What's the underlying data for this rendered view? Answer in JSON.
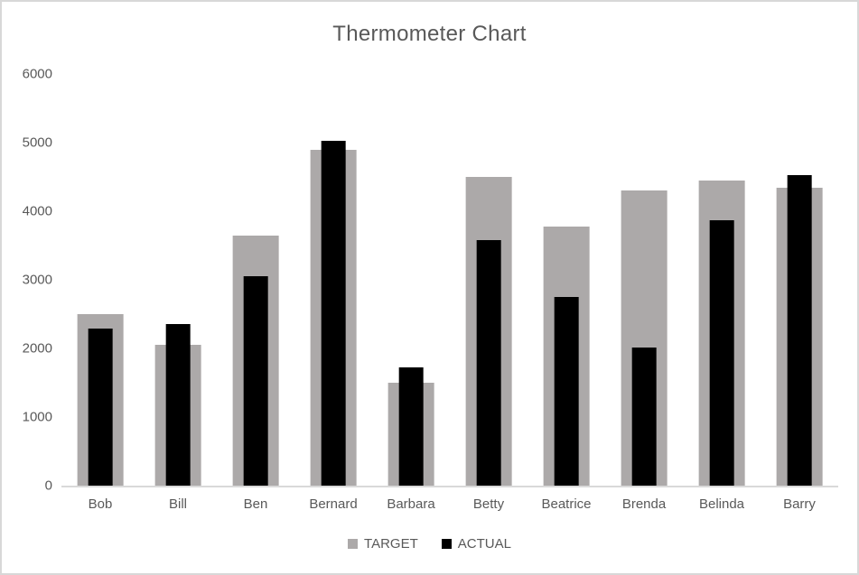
{
  "window": {
    "background": "#FFFFFF",
    "border_color": "#D8D8D8",
    "text_color": "#595959",
    "axis_line_color": "#D9D9D9"
  },
  "chart_data": {
    "type": "bar",
    "title": "Thermometer Chart",
    "categories": [
      "Bob",
      "Bill",
      "Ben",
      "Bernard",
      "Barbara",
      "Betty",
      "Beatrice",
      "Brenda",
      "Belinda",
      "Barry"
    ],
    "series": [
      {
        "name": "TARGET",
        "color": "#ACA9A9",
        "values": [
          2500,
          2050,
          3640,
          4900,
          1500,
          4500,
          3770,
          4300,
          4450,
          4340
        ]
      },
      {
        "name": "ACTUAL",
        "color": "#000000",
        "values": [
          2290,
          2350,
          3050,
          5020,
          1730,
          3580,
          2750,
          2010,
          3870,
          4520
        ]
      }
    ],
    "xlabel": "",
    "ylabel": "",
    "ylim": [
      0,
      6000
    ],
    "ytick_step": 1000,
    "ytick_labels": [
      "0",
      "1000",
      "2000",
      "3000",
      "4000",
      "5000",
      "6000"
    ],
    "grid": false,
    "legend_position": "bottom",
    "style_note": "thermometer chart: narrow black ACTUAL bar overlaid on wide gray TARGET bar"
  }
}
